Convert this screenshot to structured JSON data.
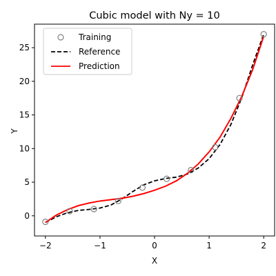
{
  "chart_data": {
    "type": "line",
    "title": "Cubic model with Ny = 10",
    "xlabel": "X",
    "ylabel": "Y",
    "xlim": [
      -2.2,
      2.2
    ],
    "ylim": [
      -3.0,
      28.5
    ],
    "xticks": [
      -2,
      -1,
      0,
      1,
      2
    ],
    "xtick_labels": [
      "−2",
      "−1",
      "0",
      "1",
      "2"
    ],
    "yticks": [
      0,
      5,
      10,
      15,
      20,
      25
    ],
    "ytick_labels": [
      "0",
      "5",
      "10",
      "15",
      "20",
      "25"
    ],
    "grid": false,
    "legend_position": "top-left",
    "series": [
      {
        "name": "Training",
        "style": "markers",
        "color": "#808080",
        "x": [
          -2.0,
          -1.556,
          -1.111,
          -0.667,
          -0.222,
          0.222,
          0.667,
          1.111,
          1.556,
          2.0
        ],
        "y": [
          -0.9,
          0.7,
          1.0,
          2.2,
          4.2,
          5.5,
          6.8,
          10.2,
          17.5,
          27.0
        ]
      },
      {
        "name": "Reference",
        "style": "dashed",
        "color": "#000000",
        "x": [
          -2.0,
          -1.8,
          -1.6,
          -1.4,
          -1.2,
          -1.0,
          -0.8,
          -0.6,
          -0.4,
          -0.2,
          0.0,
          0.2,
          0.4,
          0.6,
          0.8,
          1.0,
          1.2,
          1.4,
          1.6,
          1.8,
          2.0
        ],
        "y": [
          -1.0,
          -0.15,
          0.45,
          0.8,
          0.95,
          1.15,
          1.6,
          2.5,
          3.6,
          4.6,
          5.2,
          5.55,
          5.75,
          6.2,
          7.1,
          8.5,
          10.6,
          13.6,
          17.6,
          22.5,
          27.0
        ]
      },
      {
        "name": "Prediction",
        "style": "solid",
        "color": "#ff0000",
        "x": [
          -2.0,
          -1.8,
          -1.6,
          -1.4,
          -1.2,
          -1.0,
          -0.8,
          -0.6,
          -0.4,
          -0.2,
          0.0,
          0.2,
          0.4,
          0.6,
          0.8,
          1.0,
          1.2,
          1.4,
          1.6,
          1.8,
          2.0
        ],
        "y": [
          -1.0,
          0.1,
          0.9,
          1.5,
          1.9,
          2.2,
          2.4,
          2.6,
          2.9,
          3.3,
          3.8,
          4.4,
          5.2,
          6.3,
          7.7,
          9.5,
          11.7,
          14.5,
          17.8,
          21.8,
          26.7
        ]
      }
    ]
  }
}
